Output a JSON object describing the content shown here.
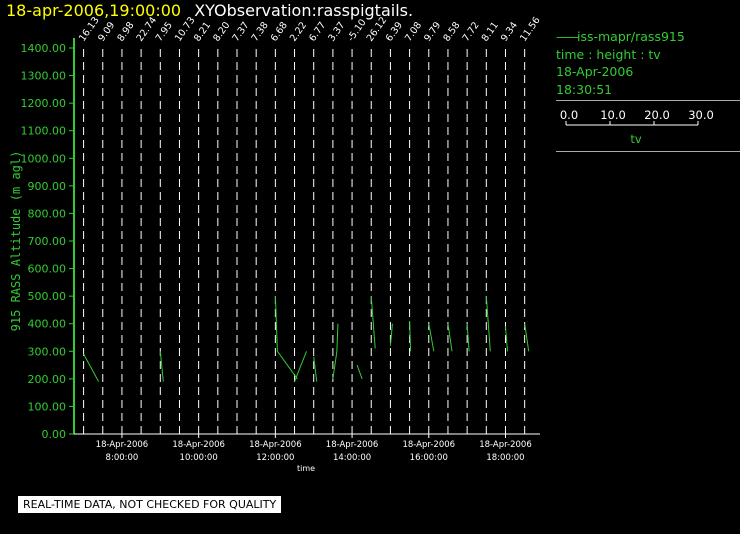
{
  "header": {
    "datetime": "18-apr-2006,19:00:00",
    "title": "XYObservation:rasspigtails."
  },
  "legend": {
    "series_label": "iss-mapr/rass915",
    "vars": "time : height : tv",
    "date": "18-Apr-2006",
    "time": "18:30:51",
    "scale_ticks": [
      "0.0",
      "10.0",
      "20.0",
      "30.0"
    ],
    "scale_var": "tv"
  },
  "footer": "REAL-TIME DATA, NOT CHECKED FOR QUALITY",
  "colors": {
    "data": "#33cc33",
    "date": "#ffff00",
    "text": "#ffffff"
  },
  "chart_data": {
    "type": "line",
    "xlabel": "time",
    "ylabel": "915 RASS Altitude (m agl)",
    "ylim": [
      0,
      1400
    ],
    "yticks": [
      "0.00",
      "100.00",
      "200.00",
      "300.00",
      "400.00",
      "500.00",
      "600.00",
      "700.00",
      "800.00",
      "900.00",
      "1000.00",
      "1100.00",
      "1200.00",
      "1300.00",
      "1400.00"
    ],
    "x_hour_range": [
      6.75,
      18.9
    ],
    "xticks": [
      {
        "hour": 8,
        "date": "18-Apr-2006",
        "time": "8:00:00"
      },
      {
        "hour": 10,
        "date": "18-Apr-2006",
        "time": "10:00:00"
      },
      {
        "hour": 12,
        "date": "18-Apr-2006",
        "time": "12:00:00"
      },
      {
        "hour": 14,
        "date": "18-Apr-2006",
        "time": "14:00:00"
      },
      {
        "hour": 16,
        "date": "18-Apr-2006",
        "time": "16:00:00"
      },
      {
        "hour": 18,
        "date": "18-Apr-2006",
        "time": "18:00:00"
      }
    ],
    "obs_lines": [
      {
        "hour": 7.0,
        "label": "16.13"
      },
      {
        "hour": 7.5,
        "label": "9.09"
      },
      {
        "hour": 8.0,
        "label": "8.98"
      },
      {
        "hour": 8.5,
        "label": "22.74"
      },
      {
        "hour": 9.0,
        "label": "7.95"
      },
      {
        "hour": 9.5,
        "label": "10.73"
      },
      {
        "hour": 10.0,
        "label": "8.21"
      },
      {
        "hour": 10.5,
        "label": "8.20"
      },
      {
        "hour": 11.0,
        "label": "7.37"
      },
      {
        "hour": 11.5,
        "label": "7.38"
      },
      {
        "hour": 12.0,
        "label": "6.68"
      },
      {
        "hour": 12.5,
        "label": "2.22"
      },
      {
        "hour": 13.0,
        "label": "6.77"
      },
      {
        "hour": 13.5,
        "label": "3.37"
      },
      {
        "hour": 14.0,
        "label": "-5.10"
      },
      {
        "hour": 14.5,
        "label": "26.12"
      },
      {
        "hour": 15.0,
        "label": "6.39"
      },
      {
        "hour": 15.5,
        "label": "7.08"
      },
      {
        "hour": 16.0,
        "label": "9.79"
      },
      {
        "hour": 16.5,
        "label": "8.58"
      },
      {
        "hour": 17.0,
        "label": "7.72"
      },
      {
        "hour": 17.5,
        "label": "8.11"
      },
      {
        "hour": 18.0,
        "label": "9.34"
      },
      {
        "hour": 18.5,
        "label": "11.56"
      }
    ],
    "series": [
      {
        "hour": 7.0,
        "points": [
          [
            0,
            290
          ],
          [
            15,
            190
          ]
        ]
      },
      {
        "hour": 9.0,
        "points": [
          [
            0,
            300
          ],
          [
            3,
            190
          ]
        ]
      },
      {
        "hour": 12.0,
        "points": [
          [
            0,
            500
          ],
          [
            2,
            300
          ],
          [
            22,
            200
          ]
        ]
      },
      {
        "hour": 12.5,
        "points": [
          [
            0,
            190
          ],
          [
            12,
            300
          ]
        ]
      },
      {
        "hour": 13.0,
        "points": [
          [
            0,
            280
          ],
          [
            3,
            190
          ]
        ]
      },
      {
        "hour": 13.5,
        "points": [
          [
            0,
            200
          ],
          [
            4,
            300
          ],
          [
            5,
            400
          ]
        ]
      },
      {
        "hour": 14.0,
        "points": [
          [
            5,
            250
          ],
          [
            10,
            200
          ]
        ]
      },
      {
        "hour": 14.5,
        "points": [
          [
            0,
            500
          ],
          [
            4,
            310
          ]
        ]
      },
      {
        "hour": 15.0,
        "points": [
          [
            0,
            320
          ],
          [
            2,
            400
          ]
        ]
      },
      {
        "hour": 15.5,
        "points": [
          [
            0,
            410
          ],
          [
            1,
            300
          ]
        ]
      },
      {
        "hour": 16.0,
        "points": [
          [
            0,
            400
          ],
          [
            5,
            300
          ]
        ]
      },
      {
        "hour": 16.5,
        "points": [
          [
            0,
            400
          ],
          [
            4,
            300
          ]
        ]
      },
      {
        "hour": 17.0,
        "points": [
          [
            0,
            400
          ],
          [
            2,
            300
          ]
        ]
      },
      {
        "hour": 17.5,
        "points": [
          [
            0,
            500
          ],
          [
            2,
            400
          ],
          [
            4,
            300
          ]
        ]
      },
      {
        "hour": 18.0,
        "points": [
          [
            0,
            390
          ],
          [
            2,
            300
          ]
        ]
      },
      {
        "hour": 18.5,
        "points": [
          [
            0,
            400
          ],
          [
            4,
            300
          ]
        ]
      }
    ]
  }
}
